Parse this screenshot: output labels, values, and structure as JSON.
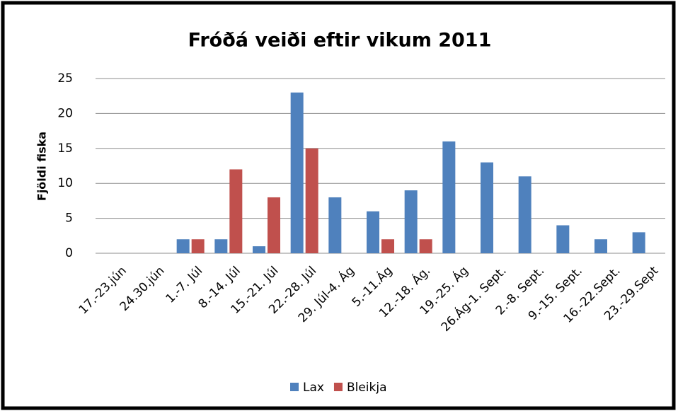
{
  "chart_data": {
    "type": "bar",
    "title": "Fróðá veiði eftir vikum 2011",
    "y_label": "Fjöldi fiska",
    "categories": [
      "17.-23.jún",
      "24.30.jún",
      "1.-7. Júl",
      "8.-14. Júl",
      "15.-21. Júl",
      "22.-28. Júl",
      "29. Júl-4. Ág",
      "5.-11.Ág",
      "12.-18. Ág.",
      "19.-25. Ág",
      "26.Ág-1. Sept.",
      "2.-8. Sept.",
      "9.-15. Sept.",
      "16.-22.Sept.",
      "23.-29.Sept"
    ],
    "series": [
      {
        "name": "Lax",
        "color": "#4f81bd",
        "values": [
          0,
          0,
          2,
          2,
          1,
          23,
          8,
          6,
          9,
          16,
          13,
          11,
          4,
          2,
          3
        ]
      },
      {
        "name": "Bleikja",
        "color": "#c0504d",
        "values": [
          0,
          0,
          2,
          12,
          8,
          15,
          0,
          2,
          2,
          0,
          0,
          0,
          0,
          0,
          0
        ]
      }
    ],
    "ylim": [
      0,
      25
    ],
    "yticks": [
      0,
      5,
      10,
      15,
      20,
      25
    ],
    "grid": true,
    "legend": "bottom"
  }
}
